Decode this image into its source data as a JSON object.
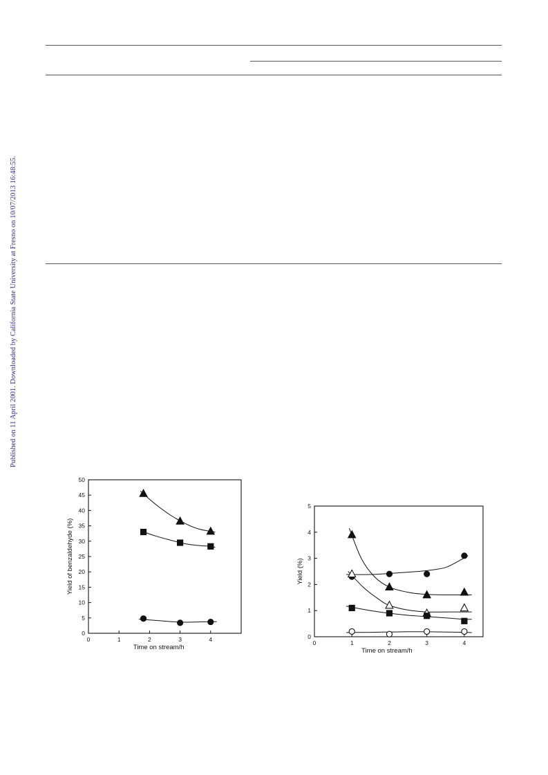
{
  "side_note": "Published on 11 April 2001. Downloaded by California State University at Fresno on 10/07/2013 16:48:55.",
  "chart_data": [
    {
      "type": "scatter",
      "xlabel": "Time on stream/h",
      "ylabel": "Yield of benzaldehyde (%)",
      "xlim": [
        0,
        5
      ],
      "ylim": [
        0,
        50
      ],
      "xticks": [
        0,
        1,
        2,
        3,
        4
      ],
      "yticks": [
        0,
        5,
        10,
        15,
        20,
        25,
        30,
        35,
        40,
        45,
        50
      ],
      "grid": false,
      "legend": "none",
      "series": [
        {
          "marker": "triangle-filled",
          "x": [
            1.8,
            3,
            4
          ],
          "y": [
            45.5,
            36.5,
            33.2
          ],
          "curve": [
            [
              1.7,
              46.3
            ],
            [
              2.2,
              42
            ],
            [
              2.7,
              38.4
            ],
            [
              3.2,
              35.6
            ],
            [
              3.6,
              34
            ],
            [
              4.0,
              33.2
            ],
            [
              4.15,
              33.0
            ]
          ]
        },
        {
          "marker": "square-filled",
          "x": [
            1.8,
            3,
            4
          ],
          "y": [
            33,
            29.5,
            28.3
          ],
          "curve": [
            [
              1.7,
              33.4
            ],
            [
              2.2,
              31.7
            ],
            [
              2.7,
              30.3
            ],
            [
              3.2,
              29.1
            ],
            [
              3.6,
              28.6
            ],
            [
              4.0,
              28.3
            ],
            [
              4.15,
              28.0
            ]
          ]
        },
        {
          "marker": "circle-filled",
          "x": [
            1.8,
            3,
            4
          ],
          "y": [
            4.8,
            3.4,
            3.7
          ],
          "curve": [
            [
              1.65,
              4.6
            ],
            [
              2.2,
              4.2
            ],
            [
              2.7,
              3.8
            ],
            [
              3.2,
              3.6
            ],
            [
              3.6,
              3.7
            ],
            [
              4.0,
              3.75
            ],
            [
              4.2,
              3.8
            ]
          ]
        }
      ]
    },
    {
      "type": "scatter",
      "xlabel": "Time on stream/h",
      "ylabel": "Yield (%)",
      "xlim": [
        0,
        4.5
      ],
      "ylim": [
        0,
        5
      ],
      "xticks": [
        0,
        1,
        2,
        3,
        4
      ],
      "yticks": [
        0,
        1,
        2,
        3,
        4,
        5
      ],
      "grid": false,
      "legend": "none",
      "series": [
        {
          "marker": "triangle-filled",
          "x": [
            1,
            2,
            3,
            4
          ],
          "y": [
            3.9,
            1.9,
            1.6,
            1.7
          ],
          "curve": [
            [
              0.93,
              4.15
            ],
            [
              1.25,
              3.0
            ],
            [
              1.6,
              2.3
            ],
            [
              2.0,
              1.9
            ],
            [
              2.5,
              1.7
            ],
            [
              3.0,
              1.62
            ],
            [
              3.5,
              1.6
            ],
            [
              4.2,
              1.6
            ]
          ]
        },
        {
          "marker": "circle-filled",
          "x": [
            1,
            2,
            3,
            4
          ],
          "y": [
            2.3,
            2.4,
            2.4,
            3.1
          ],
          "curve": [
            [
              0.85,
              2.38
            ],
            [
              1.5,
              2.38
            ],
            [
              2.0,
              2.42
            ],
            [
              2.5,
              2.47
            ],
            [
              3.0,
              2.53
            ],
            [
              3.5,
              2.65
            ],
            [
              3.85,
              2.9
            ],
            [
              4.1,
              3.1
            ]
          ]
        },
        {
          "marker": "triangle-open",
          "x": [
            1,
            2,
            3,
            4
          ],
          "y": [
            2.4,
            1.2,
            0.9,
            1.1
          ],
          "curve": [
            [
              0.9,
              2.5
            ],
            [
              1.3,
              1.9
            ],
            [
              1.7,
              1.45
            ],
            [
              2.0,
              1.2
            ],
            [
              2.5,
              1.02
            ],
            [
              3.0,
              0.95
            ],
            [
              3.6,
              0.95
            ],
            [
              4.2,
              0.95
            ]
          ]
        },
        {
          "marker": "square-filled",
          "x": [
            1,
            2,
            3,
            4
          ],
          "y": [
            1.1,
            0.9,
            0.8,
            0.6
          ],
          "curve": [
            [
              0.85,
              1.17
            ],
            [
              1.5,
              1.0
            ],
            [
              2.0,
              0.9
            ],
            [
              2.5,
              0.82
            ],
            [
              3.0,
              0.77
            ],
            [
              3.5,
              0.72
            ],
            [
              4.0,
              0.67
            ],
            [
              4.2,
              0.67
            ]
          ]
        },
        {
          "marker": "circle-open",
          "x": [
            1,
            2,
            3,
            4
          ],
          "y": [
            0.2,
            0.1,
            0.2,
            0.2
          ],
          "curve": [
            [
              0.85,
              0.16
            ],
            [
              1.5,
              0.17
            ],
            [
              2.0,
              0.18
            ],
            [
              2.5,
              0.19
            ],
            [
              3.0,
              0.19
            ],
            [
              3.5,
              0.18
            ],
            [
              4.0,
              0.17
            ],
            [
              4.2,
              0.16
            ]
          ]
        }
      ]
    }
  ]
}
